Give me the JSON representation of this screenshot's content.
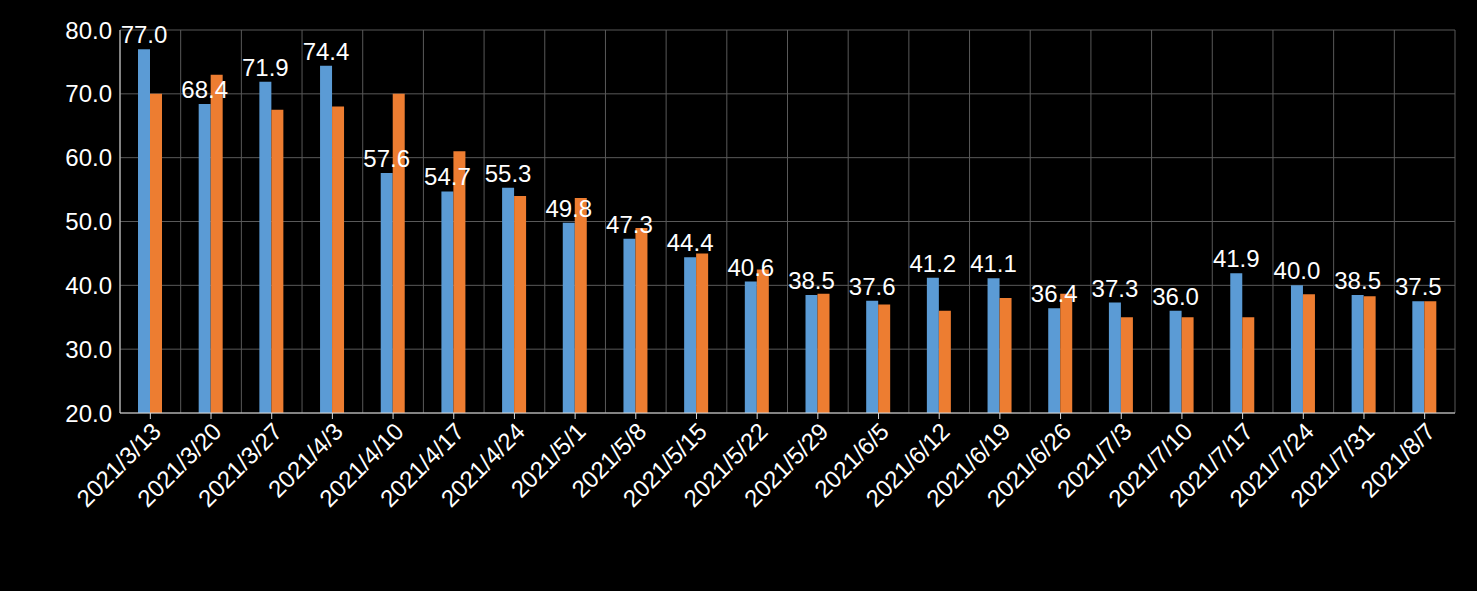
{
  "chart_data": {
    "type": "bar",
    "categories": [
      "2021/3/13",
      "2021/3/20",
      "2021/3/27",
      "2021/4/3",
      "2021/4/10",
      "2021/4/17",
      "2021/4/24",
      "2021/5/1",
      "2021/5/8",
      "2021/5/15",
      "2021/5/22",
      "2021/5/29",
      "2021/6/5",
      "2021/6/12",
      "2021/6/19",
      "2021/6/26",
      "2021/7/3",
      "2021/7/10",
      "2021/7/17",
      "2021/7/24",
      "2021/7/31",
      "2021/8/7"
    ],
    "series": [
      {
        "color": "#5b9bd5",
        "data_labels": true,
        "values": [
          77.0,
          68.4,
          71.9,
          74.4,
          57.6,
          54.7,
          55.3,
          49.8,
          47.3,
          44.4,
          40.6,
          38.5,
          37.6,
          41.2,
          41.1,
          36.4,
          37.3,
          36.0,
          41.9,
          40.0,
          38.5,
          37.5
        ],
        "value_labels": [
          "77.0",
          "68.4",
          "71.9",
          "74.4",
          "57.6",
          "54.7",
          "55.3",
          "49.8",
          "47.3",
          "44.4",
          "40.6",
          "38.5",
          "37.6",
          "41.2",
          "41.1",
          "36.4",
          "37.3",
          "36.0",
          "41.9",
          "40.0",
          "38.5",
          "37.5"
        ]
      },
      {
        "color": "#ed7d31",
        "data_labels": false,
        "values": [
          70.0,
          73.0,
          67.5,
          68.0,
          70.0,
          61.0,
          54.0,
          53.7,
          49.0,
          45.0,
          42.5,
          38.7,
          37.0,
          36.0,
          38.0,
          38.7,
          35.0,
          35.0,
          35.0,
          38.6,
          38.3,
          37.5
        ]
      }
    ],
    "ylim": [
      20,
      80
    ],
    "yticks": [
      {
        "value": 20,
        "label": "20.0"
      },
      {
        "value": 30,
        "label": "30.0"
      },
      {
        "value": 40,
        "label": "40.0"
      },
      {
        "value": 50,
        "label": "50.0"
      },
      {
        "value": 60,
        "label": "60.0"
      },
      {
        "value": 70,
        "label": "70.0"
      },
      {
        "value": 80,
        "label": "80.0"
      }
    ],
    "grid": true
  }
}
